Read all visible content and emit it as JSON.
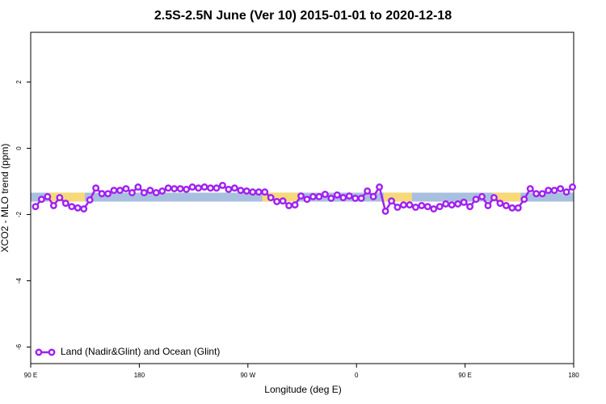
{
  "chart_data": {
    "type": "line",
    "title": "2.5S-2.5N June (Ver 10)   2015-01-01 to 2020-12-18",
    "x_label": "Longitude (deg E)",
    "y_label": "XCO2 - MLO trend (ppm)",
    "xlim": [
      90,
      540
    ],
    "ylim": [
      -6.5,
      3.5
    ],
    "xticks": [
      {
        "value": 90,
        "label": "90 E"
      },
      180,
      {
        "value": 270,
        "label": "90 W"
      },
      {
        "value": 360,
        "label": "0"
      },
      {
        "value": 450,
        "label": "90 E"
      },
      {
        "value": 540,
        "label": "180"
      }
    ],
    "yticks": [
      -6,
      -4,
      -2,
      0,
      2
    ],
    "band": [
      -1.61,
      -1.34
    ],
    "band_color": "#a9bfdf",
    "land_spans": [
      [
        104.7,
        134.9
      ],
      [
        282,
        312
      ],
      [
        382.6,
        406
      ],
      [
        473,
        496
      ]
    ],
    "land_color": "#f7d97a",
    "legend": "bottom-left",
    "x": [
      94,
      99,
      104,
      109,
      114,
      119,
      124,
      129,
      134,
      139,
      144,
      149,
      154,
      159,
      164,
      169,
      174,
      179,
      184,
      189,
      194,
      199,
      204,
      209,
      214,
      219,
      224,
      229,
      234,
      239,
      244,
      249,
      254,
      259,
      264,
      269,
      274,
      279,
      284,
      289,
      294,
      299,
      304,
      309,
      314,
      319,
      324,
      329,
      334,
      339,
      344,
      349,
      354,
      359,
      364,
      369,
      374,
      379,
      384,
      389,
      394,
      399,
      404,
      409,
      414,
      419,
      424,
      429,
      434,
      439,
      444,
      449,
      454,
      459,
      464,
      469,
      474,
      479,
      484,
      489,
      494,
      499,
      504,
      509,
      514,
      519,
      524,
      529,
      534,
      539
    ],
    "series": [
      {
        "name": "Land (Nadir&Glint) and Ocean (Glint)",
        "color": "#a020f0",
        "values": [
          -1.76,
          -1.54,
          -1.46,
          -1.73,
          -1.49,
          -1.66,
          -1.76,
          -1.8,
          -1.83,
          -1.56,
          -1.2,
          -1.37,
          -1.37,
          -1.27,
          -1.27,
          -1.22,
          -1.34,
          -1.17,
          -1.34,
          -1.27,
          -1.34,
          -1.29,
          -1.2,
          -1.22,
          -1.22,
          -1.24,
          -1.17,
          -1.2,
          -1.17,
          -1.2,
          -1.2,
          -1.12,
          -1.24,
          -1.2,
          -1.27,
          -1.29,
          -1.32,
          -1.32,
          -1.32,
          -1.49,
          -1.61,
          -1.59,
          -1.73,
          -1.71,
          -1.44,
          -1.54,
          -1.46,
          -1.46,
          -1.39,
          -1.51,
          -1.41,
          -1.49,
          -1.44,
          -1.51,
          -1.51,
          -1.29,
          -1.46,
          -1.17,
          -1.9,
          -1.59,
          -1.78,
          -1.71,
          -1.71,
          -1.78,
          -1.73,
          -1.76,
          -1.83,
          -1.76,
          -1.68,
          -1.71,
          -1.68,
          -1.63,
          -1.76,
          -1.54,
          -1.46,
          -1.73,
          -1.49,
          -1.66,
          -1.73,
          -1.8,
          -1.8,
          -1.54,
          -1.22,
          -1.37,
          -1.37,
          -1.27,
          -1.27,
          -1.22,
          -1.32,
          -1.17
        ]
      }
    ]
  }
}
